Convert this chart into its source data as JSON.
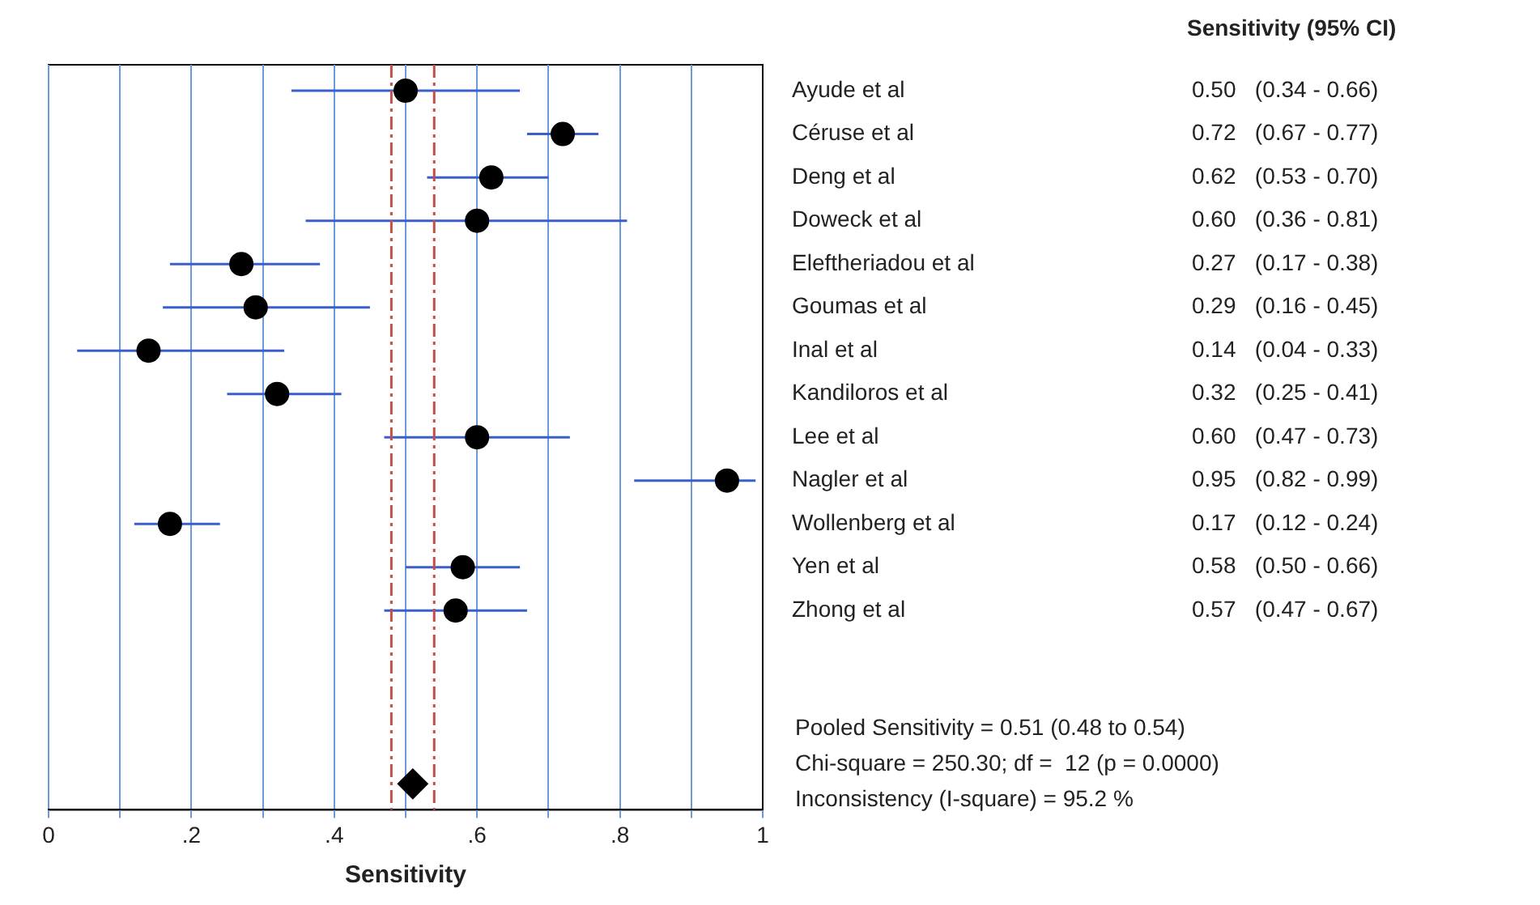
{
  "chart_data": {
    "type": "scatter",
    "orientation": "horizontal",
    "xlabel": "Sensitivity",
    "categories": [
      "Ayude et al",
      "Céruse et al",
      "Deng et al",
      "Doweck et al",
      "Eleftheriadou et al",
      "Goumas et al",
      "Inal et al",
      "Kandiloros et al",
      "Lee et al",
      "Nagler et al",
      "Wollenberg et al",
      "Yen et al",
      "Zhong et al",
      null,
      null,
      null,
      null
    ],
    "series": [
      {
        "color": "#000000",
        "marker": "circle",
        "values": [
          0.5,
          0.72,
          0.62,
          0.6,
          0.27,
          0.29,
          0.14,
          0.32,
          0.6,
          0.95,
          0.17,
          0.58,
          0.57,
          null,
          null,
          null,
          null
        ],
        "errors": [
          [
            0.34,
            0.66
          ],
          [
            0.67,
            0.77
          ],
          [
            0.53,
            0.7
          ],
          [
            0.36,
            0.81
          ],
          [
            0.17,
            0.38
          ],
          [
            0.16,
            0.45
          ],
          [
            0.04,
            0.33
          ],
          [
            0.25,
            0.41
          ],
          [
            0.47,
            0.73
          ],
          [
            0.82,
            0.99
          ],
          [
            0.12,
            0.24
          ],
          [
            0.5,
            0.66
          ],
          [
            0.47,
            0.67
          ],
          null,
          null,
          null,
          null
        ],
        "value_labels": [
          "0.50   (0.34 - 0.66)",
          "0.72   (0.67 - 0.77)",
          "0.62   (0.53 - 0.70)",
          "0.60   (0.36 - 0.81)",
          "0.27   (0.17 - 0.38)",
          "0.29   (0.16 - 0.45)",
          "0.14   (0.04 - 0.33)",
          "0.32   (0.25 - 0.41)",
          "0.60   (0.47 - 0.73)",
          "0.95   (0.82 - 0.99)",
          "0.17   (0.12 - 0.24)",
          "0.58   (0.50 - 0.66)",
          "0.57   (0.47 - 0.67)",
          null,
          null,
          null,
          null
        ]
      },
      {
        "color": "#000000",
        "marker": "diamond",
        "values": [
          null,
          null,
          null,
          null,
          null,
          null,
          null,
          null,
          null,
          null,
          null,
          null,
          null,
          null,
          null,
          null,
          0.51
        ]
      }
    ],
    "xlim": [
      0,
      1
    ],
    "xticks": [
      0,
      {
        "value": 0.1,
        "label": null
      },
      {
        "value": 0.2,
        "label": ".2"
      },
      {
        "value": 0.3,
        "label": null
      },
      {
        "value": 0.4,
        "label": ".4"
      },
      {
        "value": 0.5,
        "label": null
      },
      {
        "value": 0.6,
        "label": ".6"
      },
      {
        "value": 0.7,
        "label": null
      },
      {
        "value": 0.8,
        "label": ".8"
      },
      {
        "value": 0.9,
        "label": null
      },
      1
    ],
    "grid": "x",
    "legend": false,
    "ref_lines": [
      {
        "axis": "x",
        "value": 0.48,
        "color": "#c0504d",
        "line_style": "dashed"
      },
      {
        "axis": "x",
        "value": 0.54,
        "color": "#c0504d",
        "line_style": "dashed"
      }
    ],
    "annotations": [
      "Sensitivity (95% CI)",
      "Pooled Sensitivity = 0.51 (0.48 to 0.54)",
      "Chi-square = 250.30; df =  12 (p = 0.0000)",
      "Inconsistency (I-square) = 95.2 %"
    ]
  }
}
